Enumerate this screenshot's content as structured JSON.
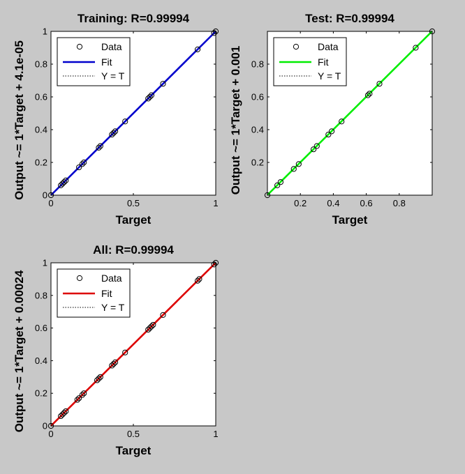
{
  "chart_data": [
    {
      "type": "scatter",
      "title": "Training: R=0.99994",
      "xlabel": "Target",
      "ylabel": "Output ~= 1*Target + 4.1e-05",
      "xlim": [
        0,
        1
      ],
      "ylim": [
        0,
        1
      ],
      "xticks": [
        "0",
        "0.5",
        "1"
      ],
      "xtick_values": [
        0,
        0.5,
        1
      ],
      "yticks": [
        "0",
        "0.2",
        "0.4",
        "0.6",
        "0.8",
        "1"
      ],
      "ytick_values": [
        0,
        0.2,
        0.4,
        0.6,
        0.8,
        1
      ],
      "fit_color": "#0000cc",
      "fit": {
        "slope": 1,
        "intercept": 4.1e-05
      },
      "legend": {
        "position": "top-left",
        "items": [
          "Data",
          "Fit",
          "Y = T"
        ]
      },
      "series": [
        {
          "name": "Data",
          "x": [
            0.0,
            0.06,
            0.07,
            0.08,
            0.09,
            0.17,
            0.19,
            0.2,
            0.29,
            0.3,
            0.37,
            0.38,
            0.39,
            0.45,
            0.59,
            0.6,
            0.61,
            0.68,
            0.89,
            0.99,
            1.0
          ],
          "y": [
            0.0,
            0.06,
            0.07,
            0.08,
            0.09,
            0.17,
            0.19,
            0.2,
            0.29,
            0.3,
            0.37,
            0.38,
            0.39,
            0.45,
            0.59,
            0.6,
            0.61,
            0.68,
            0.89,
            0.99,
            1.0
          ]
        }
      ]
    },
    {
      "type": "scatter",
      "title": "Test: R=0.99994",
      "xlabel": "Target",
      "ylabel": "Output ~= 1*Target + 0.001",
      "xlim": [
        0,
        1
      ],
      "ylim": [
        0,
        1
      ],
      "xticks": [
        "0.2",
        "0.4",
        "0.6",
        "0.8"
      ],
      "xtick_values": [
        0.2,
        0.4,
        0.6,
        0.8
      ],
      "yticks": [
        "0.2",
        "0.4",
        "0.6",
        "0.8"
      ],
      "ytick_values": [
        0.2,
        0.4,
        0.6,
        0.8
      ],
      "fit_color": "#00ee00",
      "fit": {
        "slope": 1,
        "intercept": 0.001
      },
      "legend": {
        "position": "top-left",
        "items": [
          "Data",
          "Fit",
          "Y = T"
        ]
      },
      "series": [
        {
          "name": "Data",
          "x": [
            0.0,
            0.06,
            0.08,
            0.16,
            0.19,
            0.28,
            0.3,
            0.37,
            0.39,
            0.45,
            0.61,
            0.62,
            0.68,
            0.9,
            1.0
          ],
          "y": [
            0.0,
            0.06,
            0.08,
            0.16,
            0.19,
            0.28,
            0.3,
            0.37,
            0.39,
            0.45,
            0.61,
            0.62,
            0.68,
            0.9,
            1.0
          ]
        }
      ]
    },
    {
      "type": "scatter",
      "title": "All: R=0.99994",
      "xlabel": "Target",
      "ylabel": "Output ~= 1*Target + 0.00024",
      "xlim": [
        0,
        1
      ],
      "ylim": [
        0,
        1
      ],
      "xticks": [
        "0",
        "0.5",
        "1"
      ],
      "xtick_values": [
        0,
        0.5,
        1
      ],
      "yticks": [
        "0",
        "0.2",
        "0.4",
        "0.6",
        "0.8",
        "1"
      ],
      "ytick_values": [
        0,
        0.2,
        0.4,
        0.6,
        0.8,
        1
      ],
      "fit_color": "#dd0000",
      "fit": {
        "slope": 1,
        "intercept": 0.00024
      },
      "legend": {
        "position": "top-left",
        "items": [
          "Data",
          "Fit",
          "Y = T"
        ]
      },
      "series": [
        {
          "name": "Data",
          "x": [
            0.0,
            0.06,
            0.07,
            0.08,
            0.09,
            0.16,
            0.17,
            0.19,
            0.2,
            0.28,
            0.29,
            0.3,
            0.37,
            0.38,
            0.39,
            0.45,
            0.59,
            0.6,
            0.61,
            0.62,
            0.68,
            0.89,
            0.9,
            0.99,
            1.0
          ],
          "y": [
            0.0,
            0.06,
            0.07,
            0.08,
            0.09,
            0.16,
            0.17,
            0.19,
            0.2,
            0.28,
            0.29,
            0.3,
            0.37,
            0.38,
            0.39,
            0.45,
            0.59,
            0.6,
            0.61,
            0.62,
            0.68,
            0.89,
            0.9,
            0.99,
            1.0
          ]
        }
      ]
    }
  ]
}
